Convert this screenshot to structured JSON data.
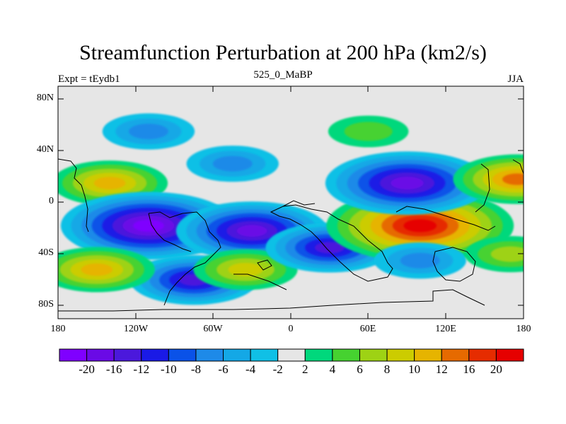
{
  "title": "Streamfunction Perturbation at 200 hPa (km2/s)",
  "left_subtitle": "Expt = tEydb1",
  "center_subtitle": "525_0_MaBP",
  "right_subtitle": "JJA",
  "chart_data": {
    "type": "heatmap",
    "projection": "cylindrical-equidistant",
    "x_ticks": [
      "180",
      "120W",
      "60W",
      "0",
      "60E",
      "120E",
      "180"
    ],
    "x_range": [
      -180,
      180
    ],
    "y_ticks": [
      "80N",
      "40N",
      "0",
      "40S",
      "80S"
    ],
    "y_range": [
      -90,
      90
    ],
    "colorbar": {
      "levels": [
        "-20",
        "-16",
        "-12",
        "-10",
        "-8",
        "-6",
        "-4",
        "-2",
        "2",
        "4",
        "6",
        "8",
        "10",
        "12",
        "16",
        "20"
      ],
      "colors": [
        "#7f00ff",
        "#6a0ae6",
        "#4b18dc",
        "#1a1ae6",
        "#0a52e8",
        "#1e8ae8",
        "#14a8e6",
        "#10c0e6",
        "#e6e6e6",
        "#00d87c",
        "#46d230",
        "#9ed214",
        "#cccc00",
        "#e6b400",
        "#e66a00",
        "#e62c00",
        "#e60000"
      ]
    },
    "anomalies": [
      {
        "lon": -140,
        "lat": 15,
        "value": 10
      },
      {
        "lon": -110,
        "lat": -18,
        "value": -20
      },
      {
        "lon": -30,
        "lat": -22,
        "value": -16
      },
      {
        "lon": -75,
        "lat": -60,
        "value": -12
      },
      {
        "lon": -150,
        "lat": -52,
        "value": 10
      },
      {
        "lon": -35,
        "lat": -52,
        "value": 8
      },
      {
        "lon": 30,
        "lat": -35,
        "value": -12
      },
      {
        "lon": 100,
        "lat": -18,
        "value": 22
      },
      {
        "lon": 90,
        "lat": 15,
        "value": -18
      },
      {
        "lon": 175,
        "lat": 18,
        "value": 12
      },
      {
        "lon": -110,
        "lat": 55,
        "value": -6
      },
      {
        "lon": -45,
        "lat": 30,
        "value": -6
      },
      {
        "lon": 60,
        "lat": 55,
        "value": 4
      },
      {
        "lon": 100,
        "lat": -45,
        "value": -6
      },
      {
        "lon": 170,
        "lat": -40,
        "value": 6
      }
    ]
  }
}
